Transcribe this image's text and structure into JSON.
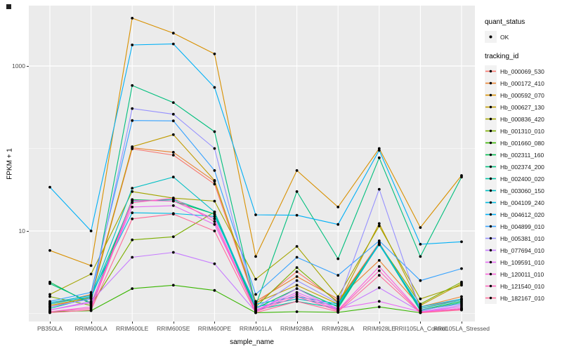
{
  "legend": {
    "quant_status": {
      "title": "quant_status",
      "items": [
        {
          "label": "OK",
          "symbol": "point",
          "color": "#000000"
        }
      ]
    },
    "tracking_id": {
      "title": "tracking_id"
    }
  },
  "chart_data": {
    "type": "line",
    "title": "",
    "xlabel": "sample_name",
    "ylabel": "FPKM + 1",
    "y_scale": "log10",
    "ylim": [
      0.8,
      5400
    ],
    "grid": true,
    "legend_position": "right",
    "panel_background": "#EBEBEB",
    "grid_color": "#FFFFFF",
    "point_color": "#000000",
    "yticks_major": [
      {
        "value": 10,
        "label": "10"
      },
      {
        "value": 1000,
        "label": "1000"
      }
    ],
    "yticks_minor": [
      1,
      100
    ],
    "categories": [
      "PB350LA",
      "RRIM600LA",
      "RRIM600LE",
      "RRIM600SE",
      "RRIM600PE",
      "RRIM901LA",
      "RRIM928BA",
      "RRIM928LA",
      "RRIM928LE",
      "RRII105LA_Control",
      "RRII105LA_Stressed"
    ],
    "series": [
      {
        "name": "Hb_000069_530",
        "color": "#F8766D",
        "values": [
          1.2,
          1.6,
          99,
          83,
          37,
          1.3,
          3.2,
          1.4,
          7.2,
          1.15,
          1.5
        ]
      },
      {
        "name": "Hb_000172_410",
        "color": "#EA8331",
        "values": [
          1.3,
          1.7,
          102,
          90,
          40,
          1.4,
          2.8,
          1.5,
          4.4,
          1.2,
          1.6
        ]
      },
      {
        "name": "Hb_000592_070",
        "color": "#D89000",
        "values": [
          5.8,
          3.8,
          3800,
          2500,
          1400,
          4.9,
          54,
          19.5,
          100,
          11,
          47
        ]
      },
      {
        "name": "Hb_000627_130",
        "color": "#C09B00",
        "values": [
          1.25,
          1.55,
          105,
          147,
          41,
          1.35,
          2.2,
          1.3,
          12.3,
          1.25,
          2.3
        ]
      },
      {
        "name": "Hb_000836_420",
        "color": "#A3A500",
        "values": [
          1.7,
          3.0,
          30,
          25,
          23,
          2.6,
          6.5,
          1.6,
          11.5,
          1.5,
          2.2
        ]
      },
      {
        "name": "Hb_001310_010",
        "color": "#7CAE00",
        "values": [
          1.6,
          1.25,
          7.8,
          8.5,
          17,
          1.2,
          3.6,
          1.35,
          7.0,
          1.3,
          2.4
        ]
      },
      {
        "name": "Hb_001660_080",
        "color": "#39B600",
        "values": [
          1.05,
          1.08,
          2.0,
          2.2,
          1.9,
          1.02,
          1.05,
          1.03,
          1.2,
          1.02,
          1.15
        ]
      },
      {
        "name": "Hb_002311_160",
        "color": "#00BB4E",
        "values": [
          2.4,
          1.3,
          24,
          23,
          16,
          1.15,
          2.0,
          1.2,
          6.9,
          1.1,
          1.4
        ]
      },
      {
        "name": "Hb_002374_200",
        "color": "#00BF7D",
        "values": [
          2.3,
          1.35,
          580,
          360,
          160,
          1.25,
          30,
          4.6,
          77,
          4.9,
          45
        ]
      },
      {
        "name": "Hb_002400_020",
        "color": "#00C1A3",
        "values": [
          1.15,
          1.55,
          23,
          24,
          16,
          1.1,
          1.4,
          1.15,
          7.0,
          1.08,
          1.35
        ]
      },
      {
        "name": "Hb_003060_150",
        "color": "#00BFC4",
        "values": [
          1.3,
          1.6,
          33,
          45,
          17,
          1.2,
          1.5,
          1.25,
          7.1,
          1.15,
          1.45
        ]
      },
      {
        "name": "Hb_004109_240",
        "color": "#00BAE0",
        "values": [
          1.35,
          1.65,
          16.6,
          16.3,
          15,
          1.3,
          1.6,
          1.3,
          6.8,
          1.2,
          1.5
        ]
      },
      {
        "name": "Hb_004612_020",
        "color": "#00B0F6",
        "values": [
          34,
          10,
          1800,
          1850,
          550,
          15.7,
          15.5,
          12,
          95,
          6.9,
          7.4
        ]
      },
      {
        "name": "Hb_004899_010",
        "color": "#35A2FF",
        "values": [
          1.4,
          1.8,
          218,
          216,
          54,
          1.7,
          4.8,
          2.9,
          7.6,
          2.5,
          3.5
        ]
      },
      {
        "name": "Hb_005381_010",
        "color": "#9590FF",
        "values": [
          1.2,
          1.5,
          305,
          260,
          100,
          1.15,
          2.5,
          1.35,
          32,
          1.1,
          1.3
        ]
      },
      {
        "name": "Hb_077694_010",
        "color": "#C77CFF",
        "values": [
          1.1,
          1.4,
          4.8,
          5.5,
          4.0,
          1.05,
          2.0,
          1.1,
          2.05,
          1.05,
          1.25
        ]
      },
      {
        "name": "Hb_109591_010",
        "color": "#E76BF3",
        "values": [
          1.1,
          1.35,
          19.5,
          20.3,
          12,
          1.1,
          1.8,
          1.15,
          1.4,
          1.05,
          1.2
        ]
      },
      {
        "name": "Hb_120011_010",
        "color": "#FA62DB",
        "values": [
          1.05,
          1.2,
          23.5,
          23,
          14,
          1.08,
          1.7,
          1.1,
          3.7,
          1.04,
          1.15
        ]
      },
      {
        "name": "Hb_121540_010",
        "color": "#FF62BC",
        "values": [
          1.05,
          1.15,
          22,
          25,
          13,
          1.05,
          1.6,
          1.08,
          3.3,
          1.03,
          1.12
        ]
      },
      {
        "name": "Hb_182167_010",
        "color": "#FF6A98",
        "values": [
          1.02,
          1.1,
          14,
          16,
          10,
          1.02,
          1.4,
          1.05,
          2.9,
          1.02,
          1.1
        ]
      }
    ]
  }
}
